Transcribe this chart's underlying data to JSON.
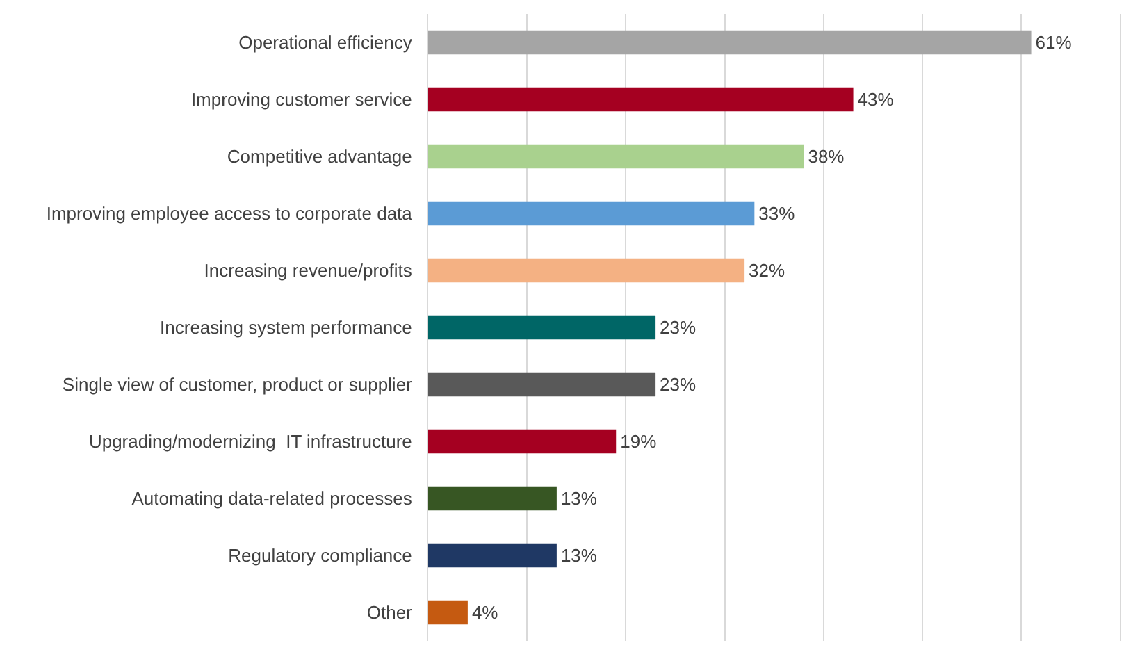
{
  "chart_data": {
    "type": "bar",
    "orientation": "horizontal",
    "categories": [
      "Operational efficiency",
      "Improving customer service",
      "Competitive advantage",
      "Improving employee access to corporate data",
      "Increasing revenue/profits",
      "Increasing system performance",
      "Single view of customer, product or supplier",
      "Upgrading/modernizing  IT infrastructure",
      "Automating data-related processes",
      "Regulatory compliance",
      "Other"
    ],
    "values": [
      61,
      43,
      38,
      33,
      32,
      23,
      23,
      19,
      13,
      13,
      4
    ],
    "value_labels": [
      "61%",
      "43%",
      "38%",
      "33%",
      "32%",
      "23%",
      "23%",
      "19%",
      "13%",
      "13%",
      "4%"
    ],
    "colors": [
      "#a5a5a5",
      "#a50021",
      "#a9d18e",
      "#5b9bd5",
      "#f4b183",
      "#006666",
      "#595959",
      "#a50021",
      "#375623",
      "#1f3864",
      "#c55a11"
    ],
    "xlim": [
      0,
      72
    ],
    "xticks": [
      {
        "value": 0,
        "label": null
      },
      {
        "value": 10,
        "label": null
      },
      {
        "value": 20,
        "label": null
      },
      {
        "value": 30,
        "label": null
      },
      {
        "value": 40,
        "label": null
      },
      {
        "value": 50,
        "label": null
      },
      {
        "value": 60,
        "label": null
      },
      {
        "value": 70,
        "label": null
      }
    ],
    "grid": "x",
    "tick_labels": "y",
    "legend": false
  }
}
